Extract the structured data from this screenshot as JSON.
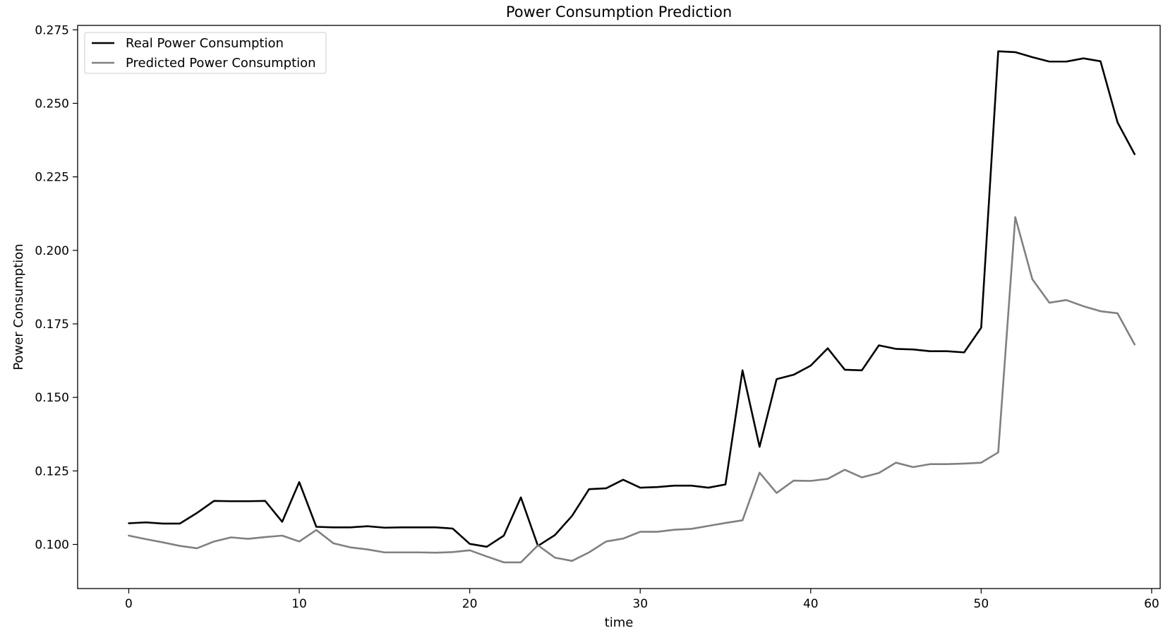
{
  "chart_data": {
    "type": "line",
    "title": "Power Consumption Prediction",
    "xlabel": "time",
    "ylabel": "Power Consumption",
    "xlim": [
      -3,
      60.5
    ],
    "ylim": [
      0.085,
      0.2765
    ],
    "xticks": [
      0,
      10,
      20,
      30,
      40,
      50,
      60
    ],
    "xtick_labels": [
      "0",
      "10",
      "20",
      "30",
      "40",
      "50",
      "60"
    ],
    "yticks": [
      0.1,
      0.125,
      0.15,
      0.175,
      0.2,
      0.225,
      0.25,
      0.275
    ],
    "ytick_labels": [
      "0.100",
      "0.125",
      "0.150",
      "0.175",
      "0.200",
      "0.225",
      "0.250",
      "0.275"
    ],
    "grid": false,
    "legend_position": "top-left",
    "x": [
      0,
      1,
      2,
      3,
      4,
      5,
      6,
      7,
      8,
      9,
      10,
      11,
      12,
      13,
      14,
      15,
      16,
      17,
      18,
      19,
      20,
      21,
      22,
      23,
      24,
      25,
      26,
      27,
      28,
      29,
      30,
      31,
      32,
      33,
      34,
      35,
      36,
      37,
      38,
      39,
      40,
      41,
      42,
      43,
      44,
      45,
      46,
      47,
      48,
      49,
      50,
      51,
      52,
      53,
      54,
      55,
      56,
      57,
      58,
      59
    ],
    "series": [
      {
        "name": "Real Power Consumption",
        "color": "#000000",
        "values": [
          0.1072,
          0.1075,
          0.1071,
          0.1071,
          0.1107,
          0.1148,
          0.1147,
          0.1147,
          0.1148,
          0.1077,
          0.1212,
          0.106,
          0.1058,
          0.1058,
          0.1062,
          0.1057,
          0.1058,
          0.1058,
          0.1058,
          0.1054,
          0.1002,
          0.0992,
          0.103,
          0.116,
          0.0995,
          0.1032,
          0.1097,
          0.1188,
          0.1191,
          0.122,
          0.1193,
          0.1195,
          0.12,
          0.12,
          0.1193,
          0.1204,
          0.1592,
          0.1332,
          0.1562,
          0.1577,
          0.1608,
          0.1667,
          0.1594,
          0.1592,
          0.1677,
          0.1665,
          0.1663,
          0.1657,
          0.1657,
          0.1653,
          0.1737,
          0.2677,
          0.2674,
          0.2657,
          0.2642,
          0.2642,
          0.2653,
          0.2643,
          0.2435,
          0.2327
        ]
      },
      {
        "name": "Predicted Power Consumption",
        "color": "#808080",
        "values": [
          0.103,
          0.1018,
          0.1007,
          0.0995,
          0.0987,
          0.101,
          0.1024,
          0.1019,
          0.1025,
          0.103,
          0.101,
          0.1049,
          0.1004,
          0.099,
          0.0983,
          0.0973,
          0.0973,
          0.0973,
          0.0972,
          0.0974,
          0.098,
          0.0959,
          0.0939,
          0.0939,
          0.0997,
          0.0955,
          0.0944,
          0.0973,
          0.101,
          0.102,
          0.1043,
          0.1043,
          0.105,
          0.1053,
          0.1063,
          0.1073,
          0.1082,
          0.1244,
          0.1175,
          0.1217,
          0.1216,
          0.1223,
          0.1254,
          0.1228,
          0.1243,
          0.1278,
          0.1263,
          0.1273,
          0.1273,
          0.1275,
          0.1278,
          0.1313,
          0.2113,
          0.1902,
          0.1822,
          0.1831,
          0.181,
          0.1793,
          0.1786,
          0.168
        ]
      }
    ]
  }
}
